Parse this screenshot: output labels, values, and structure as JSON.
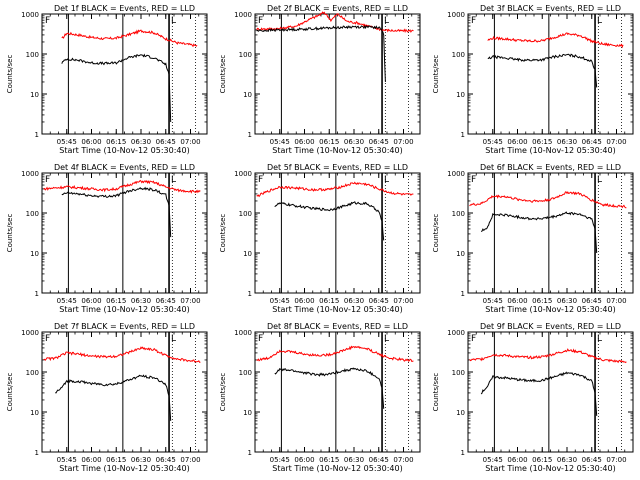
{
  "chart_data": [
    {
      "type": "line",
      "title": "Det 1f BLACK = Events, RED = LLD",
      "ylabel": "Counts/sec",
      "xlabel": "Start Time (10-Nov-12 05:30:40)",
      "xticks": [
        "05:45",
        "06:00",
        "06:15",
        "06:30",
        "06:45",
        "07:00"
      ],
      "yticks": [
        "1",
        "10",
        "100",
        "1000"
      ],
      "yscale": "log",
      "ylim": [
        1,
        1000
      ],
      "markers": [
        "F",
        "L"
      ],
      "series": [
        {
          "name": "RED = LLD",
          "color": "#ff0000",
          "x": [
            "05:42",
            "05:45",
            "05:52",
            "06:00",
            "06:08",
            "06:15",
            "06:22",
            "06:30",
            "06:38",
            "06:45",
            "06:52",
            "07:00",
            "07:04"
          ],
          "values": [
            240,
            330,
            300,
            260,
            240,
            250,
            300,
            380,
            340,
            240,
            190,
            170,
            160
          ]
        },
        {
          "name": "BLACK = Events",
          "color": "#000000",
          "x": [
            "05:42",
            "05:45",
            "05:52",
            "06:00",
            "06:08",
            "06:15",
            "06:22",
            "06:30",
            "06:38",
            "06:45",
            "06:47",
            "06:48"
          ],
          "values": [
            60,
            75,
            70,
            60,
            58,
            60,
            80,
            95,
            80,
            55,
            30,
            2
          ]
        }
      ]
    },
    {
      "type": "line",
      "title": "Det 2f BLACK = Events, RED = LLD",
      "ylabel": "Counts/sec",
      "xlabel": "Start Time (10-Nov-12 05:30:40)",
      "xticks": [
        "05:45",
        "06:00",
        "06:15",
        "06:30",
        "06:45",
        "07:00"
      ],
      "yticks": [
        "1",
        "10",
        "100",
        "1000"
      ],
      "yscale": "log",
      "ylim": [
        1,
        1000
      ],
      "markers": [
        "F",
        "L"
      ],
      "series": [
        {
          "name": "RED = LLD",
          "color": "#ff0000",
          "x": [
            "05:31",
            "05:45",
            "05:55",
            "06:02",
            "06:08",
            "06:12",
            "06:16",
            "06:20",
            "06:26",
            "06:32",
            "06:40",
            "06:47",
            "06:55",
            "07:06"
          ],
          "values": [
            420,
            430,
            500,
            700,
            900,
            1100,
            700,
            1000,
            650,
            600,
            480,
            400,
            380,
            380
          ]
        },
        {
          "name": "BLACK = Events",
          "color": "#000000",
          "x": [
            "05:31",
            "05:45",
            "06:00",
            "06:15",
            "06:30",
            "06:40",
            "06:46",
            "06:48",
            "06:49"
          ],
          "values": [
            380,
            400,
            420,
            450,
            480,
            470,
            450,
            300,
            20
          ]
        }
      ]
    },
    {
      "type": "line",
      "title": "Det 3f BLACK = Events, RED = LLD",
      "ylabel": "Counts/sec",
      "xlabel": "Start Time (10-Nov-12 05:30:40)",
      "xticks": [
        "05:45",
        "06:00",
        "06:15",
        "06:30",
        "06:45",
        "07:00"
      ],
      "yticks": [
        "1",
        "10",
        "100",
        "1000"
      ],
      "yscale": "log",
      "ylim": [
        1,
        1000
      ],
      "markers": [
        "F",
        "L"
      ],
      "series": [
        {
          "name": "RED = LLD",
          "color": "#ff0000",
          "x": [
            "05:42",
            "05:45",
            "05:52",
            "06:00",
            "06:08",
            "06:15",
            "06:22",
            "06:30",
            "06:38",
            "06:45",
            "06:52",
            "07:00",
            "07:04"
          ],
          "values": [
            220,
            250,
            240,
            220,
            210,
            215,
            260,
            320,
            290,
            210,
            175,
            165,
            160
          ]
        },
        {
          "name": "BLACK = Events",
          "color": "#000000",
          "x": [
            "05:42",
            "05:45",
            "05:52",
            "06:00",
            "06:08",
            "06:15",
            "06:22",
            "06:30",
            "06:38",
            "06:45",
            "06:47",
            "06:48"
          ],
          "values": [
            75,
            85,
            80,
            72,
            70,
            72,
            85,
            95,
            85,
            65,
            40,
            15
          ]
        }
      ]
    },
    {
      "type": "line",
      "title": "Det 4f BLACK = Events, RED = LLD",
      "ylabel": "Counts/sec",
      "xlabel": "Start Time (10-Nov-12 05:30:40)",
      "xticks": [
        "05:45",
        "06:00",
        "06:15",
        "06:30",
        "06:45",
        "07:00"
      ],
      "yticks": [
        "1",
        "10",
        "100",
        "1000"
      ],
      "yscale": "log",
      "ylim": [
        1,
        1000
      ],
      "markers": [
        "F",
        "L"
      ],
      "series": [
        {
          "name": "RED = LLD",
          "color": "#ff0000",
          "x": [
            "05:31",
            "05:45",
            "05:52",
            "06:00",
            "06:08",
            "06:15",
            "06:22",
            "06:30",
            "06:38",
            "06:45",
            "06:52",
            "07:00",
            "07:06"
          ],
          "values": [
            400,
            450,
            430,
            400,
            380,
            400,
            500,
            620,
            580,
            450,
            370,
            350,
            340
          ]
        },
        {
          "name": "BLACK = Events",
          "color": "#000000",
          "x": [
            "05:42",
            "05:45",
            "05:52",
            "06:00",
            "06:08",
            "06:15",
            "06:22",
            "06:30",
            "06:38",
            "06:45",
            "06:47",
            "06:48"
          ],
          "values": [
            280,
            320,
            300,
            270,
            260,
            270,
            350,
            420,
            380,
            280,
            150,
            25
          ]
        }
      ]
    },
    {
      "type": "line",
      "title": "Det 5f BLACK = Events, RED = LLD",
      "ylabel": "Counts/sec",
      "xlabel": "Start Time (10-Nov-12 05:30:40)",
      "xticks": [
        "05:45",
        "06:00",
        "06:15",
        "06:30",
        "06:45",
        "07:00"
      ],
      "yticks": [
        "1",
        "10",
        "100",
        "1000"
      ],
      "yscale": "log",
      "ylim": [
        1,
        1000
      ],
      "markers": [
        "F",
        "L"
      ],
      "series": [
        {
          "name": "RED = LLD",
          "color": "#ff0000",
          "x": [
            "05:31",
            "05:38",
            "05:45",
            "05:55",
            "06:05",
            "06:15",
            "06:22",
            "06:30",
            "06:38",
            "06:45",
            "06:52",
            "07:00",
            "07:06"
          ],
          "values": [
            260,
            350,
            450,
            420,
            380,
            390,
            450,
            560,
            520,
            400,
            320,
            290,
            280
          ]
        },
        {
          "name": "BLACK = Events",
          "color": "#000000",
          "x": [
            "05:42",
            "05:45",
            "05:55",
            "06:05",
            "06:15",
            "06:22",
            "06:30",
            "06:38",
            "06:45",
            "06:47",
            "06:48"
          ],
          "values": [
            150,
            175,
            150,
            130,
            120,
            140,
            180,
            170,
            110,
            60,
            20
          ]
        }
      ]
    },
    {
      "type": "line",
      "title": "Det 6f BLACK = Events, RED = LLD",
      "ylabel": "Counts/sec",
      "xlabel": "Start Time (10-Nov-12 05:30:40)",
      "xticks": [
        "05:45",
        "06:00",
        "06:15",
        "06:30",
        "06:45",
        "07:00"
      ],
      "yticks": [
        "1",
        "10",
        "100",
        "1000"
      ],
      "yscale": "log",
      "ylim": [
        1,
        1000
      ],
      "markers": [
        "F",
        "L"
      ],
      "series": [
        {
          "name": "RED = LLD",
          "color": "#ff0000",
          "x": [
            "05:31",
            "05:38",
            "05:45",
            "05:52",
            "06:00",
            "06:08",
            "06:15",
            "06:22",
            "06:30",
            "06:38",
            "06:45",
            "06:52",
            "07:00",
            "07:06"
          ],
          "values": [
            160,
            170,
            260,
            260,
            220,
            200,
            200,
            230,
            330,
            300,
            210,
            160,
            150,
            145
          ]
        },
        {
          "name": "BLACK = Events",
          "color": "#000000",
          "x": [
            "05:38",
            "05:42",
            "05:45",
            "05:52",
            "06:00",
            "06:08",
            "06:15",
            "06:22",
            "06:30",
            "06:38",
            "06:45",
            "06:47",
            "06:48"
          ],
          "values": [
            35,
            45,
            90,
            90,
            80,
            72,
            72,
            80,
            100,
            92,
            70,
            40,
            10
          ]
        }
      ]
    },
    {
      "type": "line",
      "title": "Det 7f BLACK = Events, RED = LLD",
      "ylabel": "Counts/sec",
      "xlabel": "Start Time (10-Nov-12 05:30:40)",
      "xticks": [
        "05:45",
        "06:00",
        "06:15",
        "06:30",
        "06:45",
        "07:00"
      ],
      "yticks": [
        "1",
        "10",
        "100",
        "1000"
      ],
      "yscale": "log",
      "ylim": [
        1,
        1000
      ],
      "markers": [
        "F",
        "L"
      ],
      "series": [
        {
          "name": "RED = LLD",
          "color": "#ff0000",
          "x": [
            "05:31",
            "05:38",
            "05:45",
            "05:52",
            "06:00",
            "06:08",
            "06:15",
            "06:22",
            "06:30",
            "06:38",
            "06:45",
            "06:52",
            "07:00",
            "07:06"
          ],
          "values": [
            210,
            220,
            300,
            280,
            250,
            240,
            250,
            300,
            400,
            360,
            260,
            210,
            190,
            185
          ]
        },
        {
          "name": "BLACK = Events",
          "color": "#000000",
          "x": [
            "05:38",
            "05:42",
            "05:45",
            "05:52",
            "06:00",
            "06:08",
            "06:15",
            "06:22",
            "06:30",
            "06:38",
            "06:45",
            "06:47",
            "06:48"
          ],
          "values": [
            30,
            40,
            60,
            58,
            52,
            48,
            50,
            62,
            80,
            72,
            50,
            25,
            6
          ]
        }
      ]
    },
    {
      "type": "line",
      "title": "Det 8f BLACK = Events, RED = LLD",
      "ylabel": "Counts/sec",
      "xlabel": "Start Time (10-Nov-12 05:30:40)",
      "xticks": [
        "05:45",
        "06:00",
        "06:15",
        "06:30",
        "06:45",
        "07:00"
      ],
      "yticks": [
        "1",
        "10",
        "100",
        "1000"
      ],
      "yscale": "log",
      "ylim": [
        1,
        1000
      ],
      "markers": [
        "F",
        "L"
      ],
      "series": [
        {
          "name": "RED = LLD",
          "color": "#ff0000",
          "x": [
            "05:31",
            "05:38",
            "05:45",
            "05:52",
            "06:00",
            "06:08",
            "06:15",
            "06:22",
            "06:30",
            "06:38",
            "06:45",
            "06:52",
            "07:00",
            "07:06"
          ],
          "values": [
            200,
            220,
            340,
            320,
            280,
            260,
            270,
            330,
            430,
            380,
            280,
            220,
            200,
            195
          ]
        },
        {
          "name": "BLACK = Events",
          "color": "#000000",
          "x": [
            "05:42",
            "05:45",
            "05:52",
            "06:00",
            "06:08",
            "06:15",
            "06:22",
            "06:30",
            "06:38",
            "06:45",
            "06:47",
            "06:48"
          ],
          "values": [
            90,
            115,
            110,
            95,
            85,
            88,
            105,
            120,
            105,
            70,
            40,
            12
          ]
        }
      ]
    },
    {
      "type": "line",
      "title": "Det 9f BLACK = Events, RED = LLD",
      "ylabel": "Counts/sec",
      "xlabel": "Start Time (10-Nov-12 05:30:40)",
      "xticks": [
        "05:45",
        "06:00",
        "06:15",
        "06:30",
        "06:45",
        "07:00"
      ],
      "yticks": [
        "1",
        "10",
        "100",
        "1000"
      ],
      "yscale": "log",
      "ylim": [
        1,
        1000
      ],
      "markers": [
        "F",
        "L"
      ],
      "series": [
        {
          "name": "RED = LLD",
          "color": "#ff0000",
          "x": [
            "05:31",
            "05:38",
            "05:45",
            "05:52",
            "06:00",
            "06:08",
            "06:15",
            "06:22",
            "06:30",
            "06:38",
            "06:45",
            "06:52",
            "07:00",
            "07:06"
          ],
          "values": [
            200,
            210,
            270,
            260,
            240,
            230,
            240,
            280,
            350,
            320,
            240,
            200,
            185,
            180
          ]
        },
        {
          "name": "BLACK = Events",
          "color": "#000000",
          "x": [
            "05:38",
            "05:42",
            "05:45",
            "05:52",
            "06:00",
            "06:08",
            "06:15",
            "06:22",
            "06:30",
            "06:38",
            "06:45",
            "06:47",
            "06:48"
          ],
          "values": [
            30,
            45,
            75,
            72,
            65,
            60,
            62,
            75,
            95,
            85,
            60,
            30,
            8
          ]
        }
      ]
    }
  ]
}
